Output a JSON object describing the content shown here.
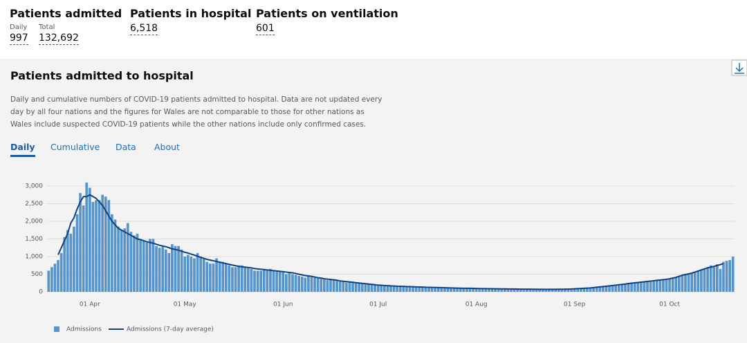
{
  "header": {
    "stats": [
      {
        "title": "Patients admitted",
        "items": [
          {
            "label": "Daily",
            "value": "997"
          },
          {
            "label": "Total",
            "value": "132,692"
          }
        ]
      },
      {
        "title": "Patients in hospital",
        "items": [
          {
            "value": "6,518"
          }
        ]
      },
      {
        "title": "Patients on ventilation",
        "items": [
          {
            "value": "601"
          }
        ]
      }
    ]
  },
  "panel": {
    "title": "Patients admitted to hospital",
    "description": "Daily and cumulative numbers of COVID-19 patients admitted to hospital. Data are not updated every day by all four nations and the figures for Wales are not comparable to those for other nations as Wales include suspected COVID-19 patients while the other nations include only confirmed cases.",
    "tabs": [
      "Daily",
      "Cumulative",
      "Data",
      "About"
    ]
  },
  "chart_data": {
    "type": "bar",
    "categories": [
      null,
      null,
      null,
      null,
      null,
      null,
      null,
      null,
      null,
      null,
      null,
      null,
      null,
      "01 Apr",
      null,
      null,
      null,
      null,
      null,
      null,
      null,
      null,
      null,
      null,
      null,
      null,
      null,
      null,
      null,
      null,
      null,
      null,
      null,
      null,
      null,
      null,
      null,
      null,
      null,
      null,
      null,
      null,
      null,
      "01 May",
      null,
      null,
      null,
      null,
      null,
      null,
      null,
      null,
      null,
      null,
      null,
      null,
      null,
      null,
      null,
      null,
      null,
      null,
      null,
      null,
      null,
      null,
      null,
      null,
      null,
      null,
      null,
      null,
      null,
      null,
      "01 Jun",
      null,
      null,
      null,
      null,
      null,
      null,
      null,
      null,
      null,
      null,
      null,
      null,
      null,
      null,
      null,
      null,
      null,
      null,
      null,
      null,
      null,
      null,
      null,
      null,
      null,
      null,
      null,
      null,
      null,
      "01 Jul",
      null,
      null,
      null,
      null,
      null,
      null,
      null,
      null,
      null,
      null,
      null,
      null,
      null,
      null,
      null,
      null,
      null,
      null,
      null,
      null,
      null,
      null,
      null,
      null,
      null,
      null,
      null,
      null,
      null,
      null,
      "01 Aug",
      null,
      null,
      null,
      null,
      null,
      null,
      null,
      null,
      null,
      null,
      null,
      null,
      null,
      null,
      null,
      null,
      null,
      null,
      null,
      null,
      null,
      null,
      null,
      null,
      null,
      null,
      null,
      null,
      null,
      null,
      "01 Sep",
      null,
      null,
      null,
      null,
      null,
      null,
      null,
      null,
      null,
      null,
      null,
      null,
      null,
      null,
      null,
      null,
      null,
      null,
      null,
      null,
      null,
      null,
      null,
      null,
      null,
      null,
      null,
      null,
      null,
      "01 Oct",
      null,
      null,
      null,
      null,
      null,
      null,
      null,
      null,
      null,
      null,
      null,
      null,
      null,
      null,
      null,
      null,
      null,
      null,
      null,
      null
    ],
    "series": [
      {
        "name": "Admissions",
        "color": "#5694ca",
        "type": "bar",
        "values": [
          600,
          700,
          800,
          900,
          1100,
          1550,
          1750,
          1650,
          1850,
          2200,
          2800,
          2450,
          3100,
          2950,
          2550,
          2600,
          2600,
          2750,
          2700,
          2600,
          2200,
          2050,
          1850,
          1750,
          1800,
          1950,
          1700,
          1600,
          1650,
          1500,
          1450,
          1400,
          1500,
          1500,
          1300,
          1250,
          1300,
          1200,
          1100,
          1350,
          1300,
          1300,
          1200,
          1000,
          1050,
          1000,
          950,
          1100,
          1000,
          950,
          850,
          800,
          800,
          950,
          850,
          850,
          800,
          750,
          700,
          700,
          750,
          750,
          700,
          700,
          650,
          600,
          600,
          600,
          650,
          600,
          650,
          600,
          600,
          580,
          550,
          500,
          550,
          500,
          480,
          450,
          430,
          400,
          450,
          430,
          400,
          380,
          370,
          350,
          330,
          370,
          350,
          330,
          300,
          280,
          260,
          300,
          290,
          270,
          260,
          240,
          230,
          220,
          210,
          200,
          190,
          180,
          180,
          175,
          170,
          165,
          160,
          160,
          155,
          150,
          150,
          145,
          140,
          140,
          135,
          130,
          130,
          125,
          125,
          120,
          120,
          115,
          115,
          110,
          110,
          105,
          105,
          100,
          100,
          100,
          100,
          95,
          95,
          90,
          90,
          90,
          90,
          85,
          85,
          85,
          85,
          80,
          80,
          80,
          80,
          75,
          75,
          75,
          75,
          75,
          70,
          70,
          70,
          70,
          70,
          70,
          70,
          75,
          75,
          75,
          80,
          80,
          85,
          90,
          95,
          100,
          100,
          110,
          120,
          130,
          140,
          150,
          160,
          170,
          180,
          190,
          200,
          210,
          220,
          240,
          250,
          260,
          270,
          280,
          290,
          300,
          300,
          310,
          320,
          330,
          340,
          350,
          370,
          400,
          420,
          450,
          480,
          500,
          520,
          550,
          570,
          600,
          620,
          650,
          700,
          750,
          700,
          780,
          650,
          850,
          880,
          900,
          997
        ]
      },
      {
        "name": "Admissions (7-day average)",
        "color": "#12407f",
        "type": "line",
        "values": [
          null,
          null,
          null,
          1050,
          1250,
          1450,
          1650,
          1950,
          2100,
          2350,
          2550,
          2700,
          2700,
          2750,
          2700,
          2650,
          2550,
          2450,
          2300,
          2150,
          2000,
          1900,
          1800,
          1750,
          1700,
          1650,
          1600,
          1550,
          1500,
          1480,
          1450,
          1420,
          1400,
          1380,
          1350,
          1320,
          1300,
          1280,
          1250,
          1220,
          1200,
          1180,
          1150,
          1120,
          1100,
          1070,
          1040,
          1010,
          980,
          950,
          920,
          900,
          880,
          860,
          840,
          820,
          800,
          780,
          760,
          740,
          720,
          710,
          700,
          690,
          680,
          660,
          650,
          640,
          630,
          620,
          610,
          600,
          590,
          580,
          570,
          560,
          550,
          540,
          520,
          500,
          480,
          460,
          450,
          440,
          420,
          400,
          390,
          370,
          360,
          350,
          340,
          330,
          310,
          300,
          290,
          280,
          270,
          260,
          250,
          240,
          230,
          220,
          210,
          200,
          190,
          185,
          180,
          175,
          170,
          165,
          160,
          158,
          155,
          150,
          148,
          145,
          140,
          138,
          135,
          130,
          128,
          125,
          122,
          120,
          118,
          115,
          112,
          110,
          108,
          105,
          102,
          100,
          100,
          100,
          98,
          95,
          93,
          90,
          90,
          88,
          87,
          85,
          85,
          84,
          83,
          82,
          80,
          80,
          78,
          77,
          76,
          75,
          75,
          74,
          73,
          72,
          72,
          71,
          71,
          71,
          72,
          73,
          74,
          75,
          77,
          80,
          85,
          90,
          95,
          100,
          105,
          110,
          120,
          130,
          140,
          150,
          160,
          170,
          180,
          190,
          200,
          210,
          220,
          235,
          245,
          255,
          265,
          275,
          285,
          295,
          305,
          315,
          325,
          335,
          345,
          355,
          370,
          390,
          410,
          440,
          470,
          490,
          510,
          530,
          560,
          590,
          620,
          650,
          680,
          700,
          720,
          750,
          770,
          800,
          null,
          null,
          null
        ]
      }
    ],
    "ylim": [
      0,
      3000
    ],
    "yticks": [
      0,
      500,
      {
        "value": 1000,
        "label": "1,000"
      },
      {
        "value": 1500,
        "label": "1,500"
      },
      {
        "value": 2000,
        "label": "2,000"
      },
      {
        "value": 2500,
        "label": "2,500"
      },
      {
        "value": 3000,
        "label": "3,000"
      }
    ],
    "grid": true
  }
}
